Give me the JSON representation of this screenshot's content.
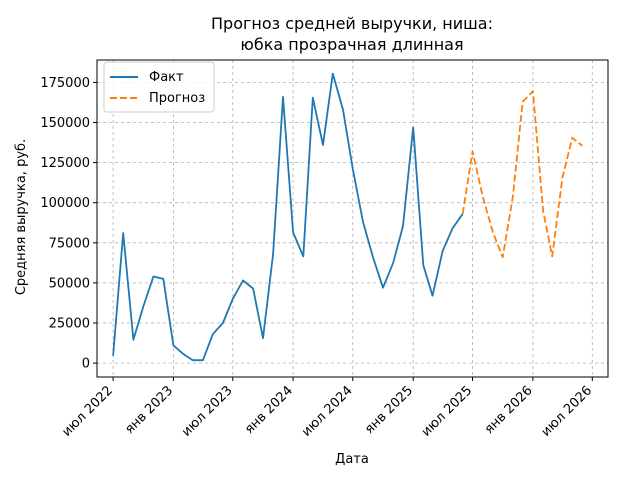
{
  "chart_data": {
    "type": "line",
    "title_lines": [
      "Прогноз средней выручки, ниша:",
      "юбка прозрачная длинная"
    ],
    "xlabel": "Дата",
    "ylabel": "Средняя выручка, руб.",
    "x_ticks": [
      {
        "date": "2022-07-01",
        "label": "июл 2022"
      },
      {
        "date": "2023-01-01",
        "label": "янв 2023"
      },
      {
        "date": "2023-07-01",
        "label": "июл 2023"
      },
      {
        "date": "2024-01-01",
        "label": "янв 2024"
      },
      {
        "date": "2024-07-01",
        "label": "июл 2024"
      },
      {
        "date": "2025-01-01",
        "label": "янв 2025"
      },
      {
        "date": "2025-07-01",
        "label": "июл 2025"
      },
      {
        "date": "2026-01-01",
        "label": "янв 2026"
      },
      {
        "date": "2026-07-01",
        "label": "июл 2026"
      }
    ],
    "y_ticks": [
      0,
      25000,
      50000,
      75000,
      100000,
      125000,
      150000,
      175000
    ],
    "y_tick_labels": [
      "0",
      "25000",
      "50000",
      "75000",
      "100000",
      "125000",
      "150000",
      "175000"
    ],
    "xlim": [
      "2022-05-13",
      "2026-08-18"
    ],
    "ylim": [
      -8700,
      189000
    ],
    "grid": true,
    "legend_position": "top-left",
    "series": [
      {
        "name": "Факт",
        "color": "#1f77b4",
        "style": "solid",
        "points": [
          {
            "x": "2022-07-01",
            "y": 4500
          },
          {
            "x": "2022-08-01",
            "y": 81000
          },
          {
            "x": "2022-09-01",
            "y": 14500
          },
          {
            "x": "2022-10-01",
            "y": 35000
          },
          {
            "x": "2022-11-01",
            "y": 54000
          },
          {
            "x": "2022-12-01",
            "y": 52500
          },
          {
            "x": "2023-01-01",
            "y": 11000
          },
          {
            "x": "2023-02-01",
            "y": 5500
          },
          {
            "x": "2023-03-01",
            "y": 1800
          },
          {
            "x": "2023-04-01",
            "y": 1800
          },
          {
            "x": "2023-05-01",
            "y": 18000
          },
          {
            "x": "2023-06-01",
            "y": 25000
          },
          {
            "x": "2023-07-01",
            "y": 40000
          },
          {
            "x": "2023-08-01",
            "y": 51500
          },
          {
            "x": "2023-09-01",
            "y": 46500
          },
          {
            "x": "2023-10-01",
            "y": 15500
          },
          {
            "x": "2023-11-01",
            "y": 68000
          },
          {
            "x": "2023-12-01",
            "y": 166000
          },
          {
            "x": "2024-01-01",
            "y": 81500
          },
          {
            "x": "2024-02-01",
            "y": 66500
          },
          {
            "x": "2024-03-01",
            "y": 165500
          },
          {
            "x": "2024-04-01",
            "y": 136000
          },
          {
            "x": "2024-05-01",
            "y": 180500
          },
          {
            "x": "2024-06-01",
            "y": 158000
          },
          {
            "x": "2024-07-01",
            "y": 121000
          },
          {
            "x": "2024-08-01",
            "y": 88000
          },
          {
            "x": "2024-09-01",
            "y": 65500
          },
          {
            "x": "2024-10-01",
            "y": 47000
          },
          {
            "x": "2024-11-01",
            "y": 62500
          },
          {
            "x": "2024-12-01",
            "y": 85500
          },
          {
            "x": "2025-01-01",
            "y": 147000
          },
          {
            "x": "2025-02-01",
            "y": 61000
          },
          {
            "x": "2025-03-01",
            "y": 42000
          },
          {
            "x": "2025-04-01",
            "y": 70000
          },
          {
            "x": "2025-05-01",
            "y": 84000
          },
          {
            "x": "2025-06-01",
            "y": 93000
          }
        ]
      },
      {
        "name": "Прогноз",
        "color": "#ff7f0e",
        "style": "dashed",
        "points": [
          {
            "x": "2025-06-01",
            "y": 93000
          },
          {
            "x": "2025-07-01",
            "y": 132000
          },
          {
            "x": "2025-08-01",
            "y": 104000
          },
          {
            "x": "2025-09-01",
            "y": 81500
          },
          {
            "x": "2025-10-01",
            "y": 66000
          },
          {
            "x": "2025-11-01",
            "y": 104000
          },
          {
            "x": "2025-12-01",
            "y": 163000
          },
          {
            "x": "2026-01-01",
            "y": 169500
          },
          {
            "x": "2026-02-01",
            "y": 95000
          },
          {
            "x": "2026-03-01",
            "y": 66500
          },
          {
            "x": "2026-04-01",
            "y": 115500
          },
          {
            "x": "2026-05-01",
            "y": 140500
          },
          {
            "x": "2026-06-01",
            "y": 135500
          }
        ]
      }
    ]
  }
}
